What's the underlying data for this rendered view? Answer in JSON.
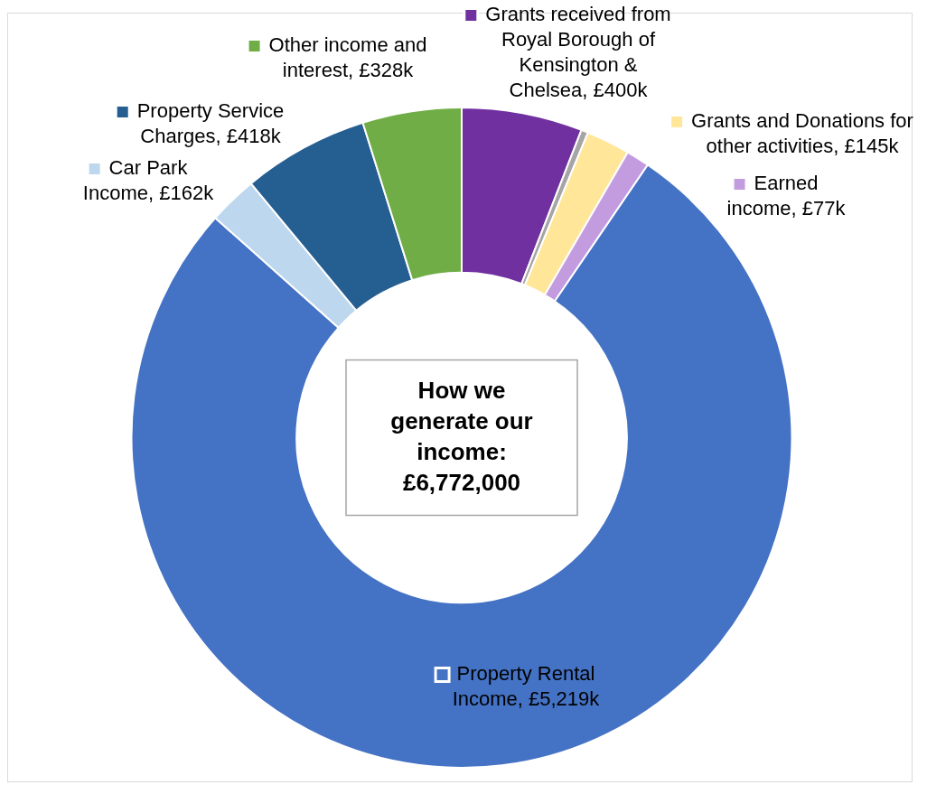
{
  "chart_data": {
    "type": "donut",
    "title": "How we generate our income: £6,772,000",
    "categories": [
      "Grants received from Royal Borough of Kensington & Chelsea",
      null,
      "Grants and Donations for other activities",
      "Earned income",
      "Property Rental Income",
      "Car Park Income",
      "Property Service Charges",
      "Other income and interest"
    ],
    "values": [
      400,
      23,
      145,
      77,
      5219,
      162,
      418,
      328
    ],
    "colors": [
      "#7030a0",
      "#a5a5a5",
      "#ffe699",
      "#c39bdf",
      "#4472c4",
      "#bdd7ee",
      "#255e91",
      "#70ad47"
    ],
    "value_labels": [
      "£400k",
      null,
      "£145k",
      "£77k",
      "£5,219k",
      "£162k",
      "£418k",
      "£328k"
    ],
    "legend": "top"
  }
}
